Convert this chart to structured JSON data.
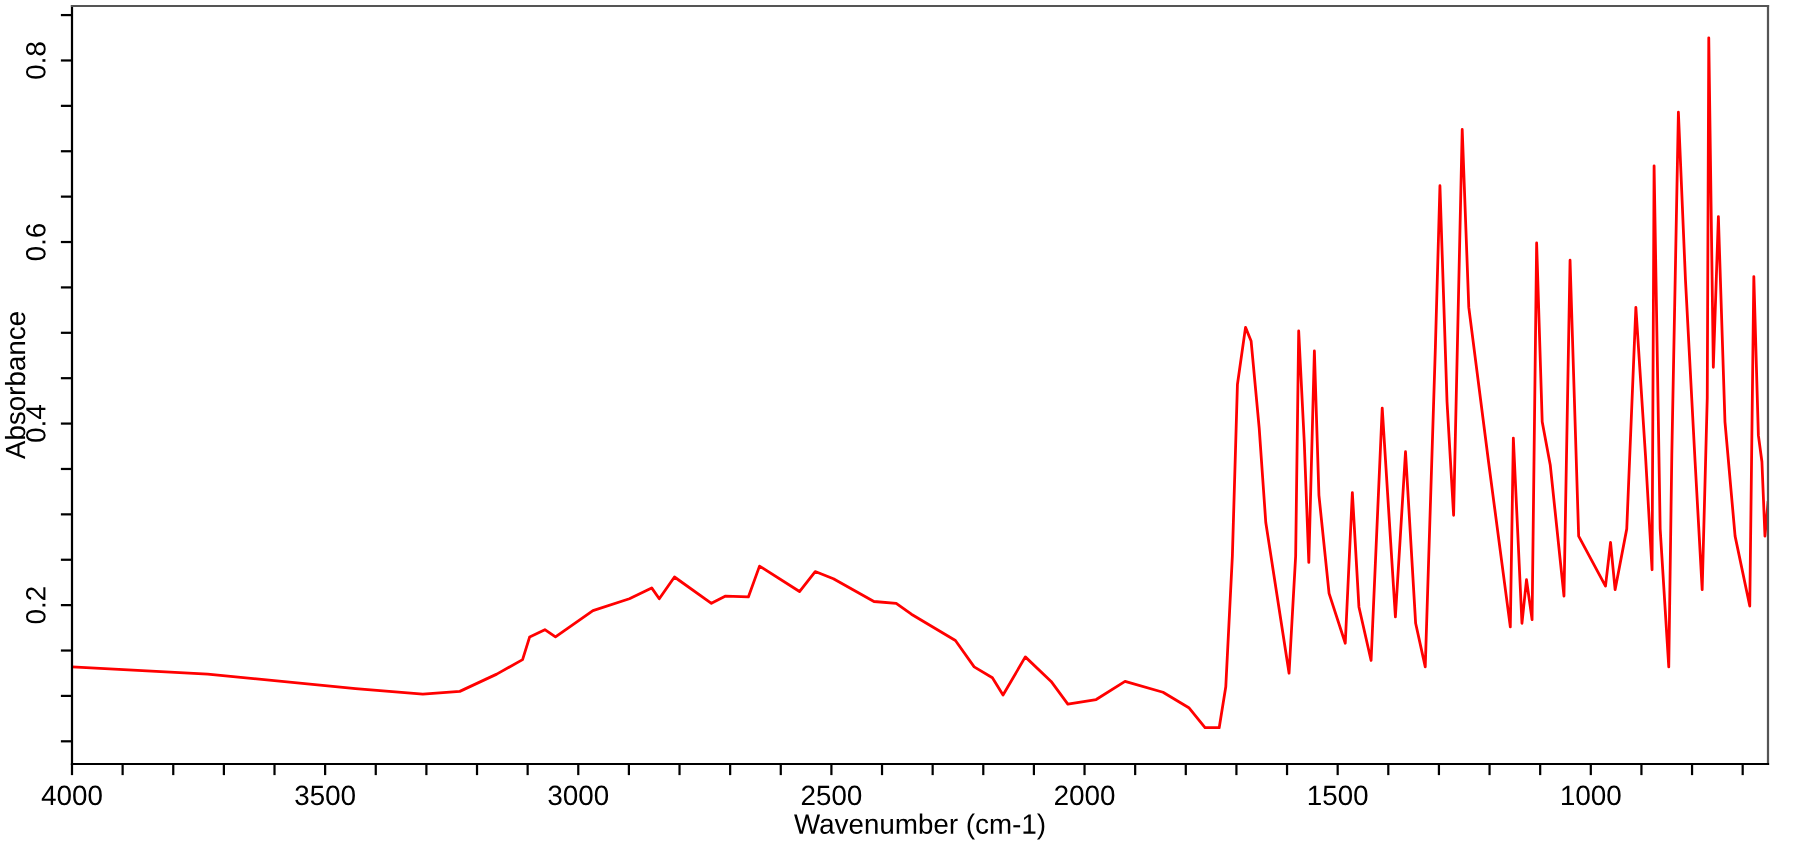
{
  "chart_data": {
    "type": "line",
    "xlabel": "Wavenumber (cm-1)",
    "ylabel": "Absorbance",
    "xlim": [
      4000,
      650
    ],
    "ylim": [
      0.025,
      0.86
    ],
    "grid": false,
    "legend": false,
    "marker": "none",
    "line_style": "solid",
    "xticks": [
      4000,
      {
        "value": 3900,
        "label": null
      },
      {
        "value": 3800,
        "label": null
      },
      {
        "value": 3700,
        "label": null
      },
      {
        "value": 3600,
        "label": null
      },
      3500,
      {
        "value": 3400,
        "label": null
      },
      {
        "value": 3300,
        "label": null
      },
      {
        "value": 3200,
        "label": null
      },
      {
        "value": 3100,
        "label": null
      },
      3000,
      {
        "value": 2900,
        "label": null
      },
      {
        "value": 2800,
        "label": null
      },
      {
        "value": 2700,
        "label": null
      },
      {
        "value": 2600,
        "label": null
      },
      2500,
      {
        "value": 2400,
        "label": null
      },
      {
        "value": 2300,
        "label": null
      },
      {
        "value": 2200,
        "label": null
      },
      {
        "value": 2100,
        "label": null
      },
      2000,
      {
        "value": 1900,
        "label": null
      },
      {
        "value": 1800,
        "label": null
      },
      {
        "value": 1700,
        "label": null
      },
      {
        "value": 1600,
        "label": null
      },
      1500,
      {
        "value": 1400,
        "label": null
      },
      {
        "value": 1300,
        "label": null
      },
      {
        "value": 1200,
        "label": null
      },
      {
        "value": 1100,
        "label": null
      },
      1000,
      {
        "value": 900,
        "label": null
      },
      {
        "value": 800,
        "label": null
      },
      {
        "value": 700,
        "label": null
      }
    ],
    "yticks": [
      {
        "value": 0.05,
        "label": null
      },
      {
        "value": 0.1,
        "label": null
      },
      {
        "value": 0.15,
        "label": null
      },
      0.2,
      {
        "value": 0.25,
        "label": null
      },
      {
        "value": 0.3,
        "label": null
      },
      {
        "value": 0.35,
        "label": null
      },
      0.4,
      {
        "value": 0.45,
        "label": null
      },
      {
        "value": 0.5,
        "label": null
      },
      {
        "value": 0.55,
        "label": null
      },
      0.6,
      {
        "value": 0.65,
        "label": null
      },
      {
        "value": 0.7,
        "label": null
      },
      {
        "value": 0.75,
        "label": null
      },
      0.8,
      {
        "value": 0.85,
        "label": null
      }
    ],
    "series": [
      {
        "color": "#ff0000",
        "x": [
          4000,
          3732,
          3440,
          3307,
          3234,
          3161,
          3110,
          3096,
          3066,
          3045,
          2971,
          2899,
          2855,
          2840,
          2810,
          2737,
          2709,
          2664,
          2642,
          2563,
          2532,
          2496,
          2416,
          2372,
          2342,
          2255,
          2218,
          2182,
          2161,
          2117,
          2066,
          2033,
          1977,
          1920,
          1845,
          1794,
          1762,
          1734,
          1721,
          1708,
          1698,
          1682,
          1671,
          1655,
          1642,
          1596,
          1583,
          1577,
          1566,
          1557,
          1546,
          1537,
          1517,
          1485,
          1471,
          1458,
          1434,
          1412,
          1386,
          1366,
          1346,
          1327,
          1307,
          1298,
          1284,
          1271,
          1254,
          1241,
          1202,
          1159,
          1153,
          1136,
          1127,
          1116,
          1107,
          1096,
          1080,
          1053,
          1041,
          1024,
          971,
          961,
          952,
          929,
          911,
          892,
          879,
          875,
          863,
          846,
          840,
          827,
          813,
          794,
          780,
          770,
          767,
          758,
          748,
          735,
          715,
          686,
          678,
          669,
          662,
          656,
          650
        ],
        "values": [
          0.132,
          0.124,
          0.108,
          0.102,
          0.105,
          0.124,
          0.14,
          0.165,
          0.173,
          0.165,
          0.194,
          0.207,
          0.219,
          0.207,
          0.231,
          0.202,
          0.21,
          0.209,
          0.243,
          0.215,
          0.237,
          0.229,
          0.204,
          0.202,
          0.19,
          0.161,
          0.132,
          0.12,
          0.101,
          0.143,
          0.116,
          0.091,
          0.096,
          0.116,
          0.104,
          0.087,
          0.065,
          0.065,
          0.11,
          0.254,
          0.443,
          0.506,
          0.491,
          0.395,
          0.291,
          0.125,
          0.254,
          0.502,
          0.38,
          0.247,
          0.48,
          0.321,
          0.213,
          0.158,
          0.324,
          0.198,
          0.139,
          0.417,
          0.187,
          0.369,
          0.18,
          0.132,
          0.484,
          0.662,
          0.424,
          0.299,
          0.724,
          0.528,
          0.358,
          0.176,
          0.384,
          0.18,
          0.228,
          0.184,
          0.599,
          0.402,
          0.354,
          0.21,
          0.58,
          0.276,
          0.221,
          0.269,
          0.217,
          0.284,
          0.528,
          0.365,
          0.239,
          0.684,
          0.284,
          0.132,
          0.365,
          0.743,
          0.558,
          0.358,
          0.217,
          0.428,
          0.825,
          0.462,
          0.628,
          0.402,
          0.276,
          0.199,
          0.562,
          0.387,
          0.358,
          0.276,
          0.313
        ]
      }
    ]
  }
}
